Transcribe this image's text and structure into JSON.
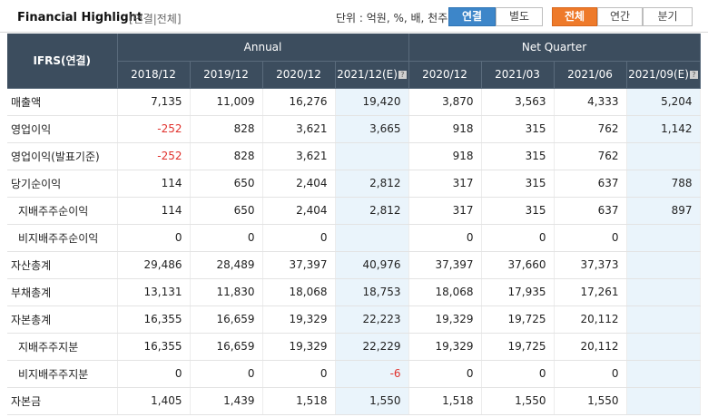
{
  "header": {
    "title": "Financial Highlight",
    "subtitle": "[연결|전체]",
    "unit_text": "단위 : 억원, %, 배, 천주",
    "toggle_consolidated": "연결",
    "toggle_separate": "별도",
    "period_all": "전체",
    "period_annual": "연간",
    "period_quarter": "분기"
  },
  "table": {
    "ifrs_label": "IFRS(연결)",
    "annual_label": "Annual",
    "quarter_label": "Net Quarter",
    "columns": [
      "2018/12",
      "2019/12",
      "2020/12",
      "2021/12(E)",
      "2020/12",
      "2021/03",
      "2021/06",
      "2021/09(E)"
    ],
    "help_icon": "?",
    "rows": [
      {
        "label": "매출액",
        "values": [
          "7,135",
          "11,009",
          "16,276",
          "19,420",
          "3,870",
          "3,563",
          "4,333",
          "5,204"
        ]
      },
      {
        "label": "영업이익",
        "values": [
          "-252",
          "828",
          "3,621",
          "3,665",
          "918",
          "315",
          "762",
          "1,142"
        ]
      },
      {
        "label": "영업이익(발표기준)",
        "values": [
          "-252",
          "828",
          "3,621",
          "",
          "918",
          "315",
          "762",
          ""
        ]
      },
      {
        "label": "당기순이익",
        "values": [
          "114",
          "650",
          "2,404",
          "2,812",
          "317",
          "315",
          "637",
          "788"
        ]
      },
      {
        "label": "지배주주순이익",
        "values": [
          "114",
          "650",
          "2,404",
          "2,812",
          "317",
          "315",
          "637",
          "897"
        ]
      },
      {
        "label": "비지배주주순이익",
        "values": [
          "0",
          "0",
          "0",
          "",
          "0",
          "0",
          "0",
          ""
        ]
      },
      {
        "label": "자산총계",
        "values": [
          "29,486",
          "28,489",
          "37,397",
          "40,976",
          "37,397",
          "37,660",
          "37,373",
          ""
        ]
      },
      {
        "label": "부채총계",
        "values": [
          "13,131",
          "11,830",
          "18,068",
          "18,753",
          "18,068",
          "17,935",
          "17,261",
          ""
        ]
      },
      {
        "label": "자본총계",
        "values": [
          "16,355",
          "16,659",
          "19,329",
          "22,223",
          "19,329",
          "19,725",
          "20,112",
          ""
        ]
      },
      {
        "label": "지배주주지분",
        "values": [
          "16,355",
          "16,659",
          "19,329",
          "22,229",
          "19,329",
          "19,725",
          "20,112",
          ""
        ]
      },
      {
        "label": "비지배주주지분",
        "values": [
          "0",
          "0",
          "0",
          "-6",
          "0",
          "0",
          "0",
          ""
        ]
      },
      {
        "label": "자본금",
        "values": [
          "1,405",
          "1,439",
          "1,518",
          "1,550",
          "1,518",
          "1,550",
          "1,550",
          ""
        ]
      }
    ]
  },
  "colors": {
    "header_bg": "#3c4d5e",
    "estimate_bg": "#eaf4fb",
    "negative": "#e0312c",
    "toggle_active": "#3d86c9",
    "period_active": "#ee7a2a"
  }
}
